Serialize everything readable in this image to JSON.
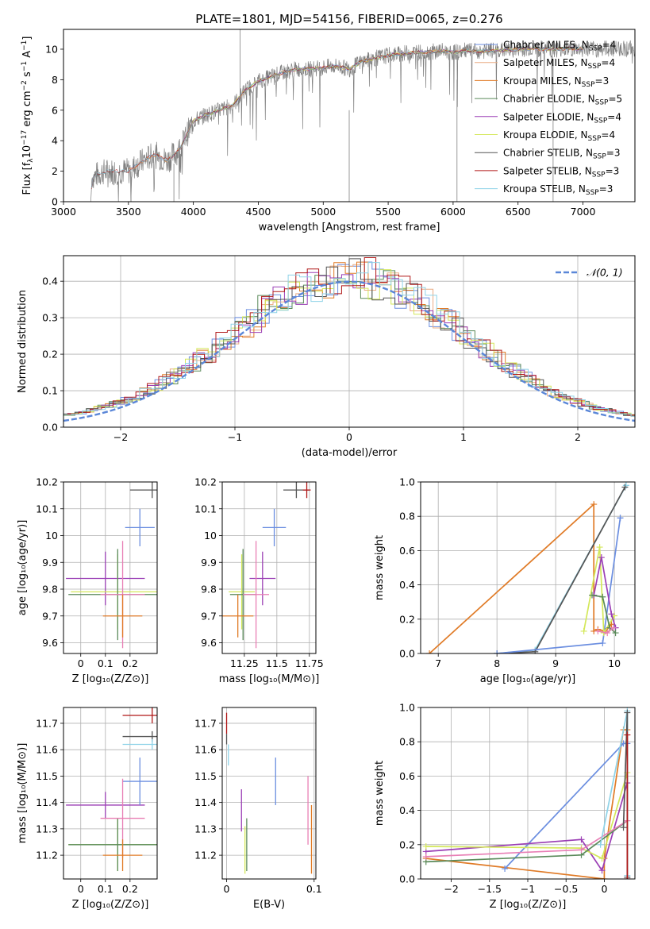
{
  "figure": {
    "title": "PLATE=1801, MJD=54156, FIBERID=0065, z=0.276"
  },
  "colors": {
    "chabrier_miles": "#6b8ee0",
    "salpeter_miles": "#e9ac84",
    "kroupa_miles": "#e07b27",
    "chabrier_elodie": "#5a8a5a",
    "salpeter_elodie": "#9b3fb5",
    "kroupa_elodie": "#d4e85a",
    "chabrier_stelib": "#555555",
    "salpeter_stelib": "#b01818",
    "kroupa_stelib": "#8fd3e8",
    "normal_curve": "#5b87d8",
    "pink": "#e87fb5",
    "grid": "#b0b0b0",
    "spectrum": "#808080"
  },
  "chart_data": [
    {
      "id": "spectrum",
      "type": "line",
      "xlabel": "wavelength [Angstrom, rest frame]",
      "ylabel_parts": [
        "Flux [f",
        "λ",
        "10",
        "−17",
        " erg cm",
        "−2",
        " s",
        "−1",
        " A",
        "−1",
        "]"
      ],
      "xlim": [
        3000,
        7400
      ],
      "ylim": [
        0,
        11.3
      ],
      "xticks": [
        3000,
        3500,
        4000,
        4500,
        5000,
        5500,
        6000,
        6500,
        7000
      ],
      "yticks": [
        0,
        2,
        4,
        6,
        8,
        10
      ],
      "grid": false,
      "legend_position": "top-right",
      "legend": [
        {
          "label": "Chabrier MILES, N",
          "sub": "SSP",
          "tail": "=4",
          "color": "#6b8ee0"
        },
        {
          "label": "Salpeter MILES, N",
          "sub": "SSP",
          "tail": "=4",
          "color": "#e9ac84"
        },
        {
          "label": "Kroupa MILES, N",
          "sub": "SSP",
          "tail": "=3",
          "color": "#e07b27"
        },
        {
          "label": "Chabrier ELODIE, N",
          "sub": "SSP",
          "tail": "=5",
          "color": "#5a8a5a"
        },
        {
          "label": "Salpeter ELODIE, N",
          "sub": "SSP",
          "tail": "=4",
          "color": "#9b3fb5"
        },
        {
          "label": "Kroupa ELODIE, N",
          "sub": "SSP",
          "tail": "=4",
          "color": "#d4e85a"
        },
        {
          "label": "Chabrier STELIB, N",
          "sub": "SSP",
          "tail": "=3",
          "color": "#555555"
        },
        {
          "label": "Salpeter STELIB, N",
          "sub": "SSP",
          "tail": "=3",
          "color": "#b01818"
        },
        {
          "label": "Kroupa STELIB, N",
          "sub": "SSP",
          "tail": "=3",
          "color": "#8fd3e8"
        }
      ],
      "continuum_points": [
        [
          3210,
          0
        ],
        [
          3220,
          1.6
        ],
        [
          3300,
          1.95
        ],
        [
          3400,
          2.0
        ],
        [
          3500,
          2.0
        ],
        [
          3600,
          2.6
        ],
        [
          3700,
          3.1
        ],
        [
          3800,
          2.7
        ],
        [
          3900,
          3.5
        ],
        [
          4000,
          5.3
        ],
        [
          4100,
          5.7
        ],
        [
          4200,
          6.0
        ],
        [
          4300,
          6.3
        ],
        [
          4400,
          7.3
        ],
        [
          4500,
          7.9
        ],
        [
          4600,
          8.2
        ],
        [
          4700,
          8.5
        ],
        [
          4800,
          8.7
        ],
        [
          4900,
          8.7
        ],
        [
          5000,
          8.8
        ],
        [
          5100,
          8.9
        ],
        [
          5200,
          8.7
        ],
        [
          5300,
          9.2
        ],
        [
          5400,
          9.4
        ],
        [
          5500,
          9.6
        ],
        [
          5600,
          9.7
        ],
        [
          5700,
          9.8
        ],
        [
          5800,
          9.8
        ],
        [
          5900,
          9.9
        ],
        [
          6000,
          9.8
        ],
        [
          6100,
          9.9
        ],
        [
          6200,
          9.85
        ],
        [
          6300,
          9.9
        ],
        [
          6400,
          9.95
        ],
        [
          6500,
          10.0
        ],
        [
          6600,
          10.05
        ],
        [
          6700,
          10.0
        ],
        [
          6800,
          10.0
        ],
        [
          6900,
          10.05
        ],
        [
          7000,
          10.0
        ],
        [
          7100,
          10.0
        ],
        [
          7200,
          10.05
        ],
        [
          7400,
          10.05
        ]
      ]
    },
    {
      "id": "residuals",
      "type": "histogram",
      "xlabel": "(data-model)/error",
      "ylabel": "Normed distribution",
      "xlim": [
        -2.5,
        2.5
      ],
      "ylim": [
        0,
        0.47
      ],
      "xticks": [
        -2,
        -1,
        0,
        1,
        2
      ],
      "yticks": [
        0.0,
        0.1,
        0.2,
        0.3,
        0.4
      ],
      "grid": true,
      "legend_position": "top-right",
      "legend": [
        {
          "label": "𝒩(0, 1)",
          "color": "#5b87d8"
        }
      ],
      "bin_width": 0.1
    },
    {
      "id": "age_vs_Z",
      "type": "errorbar",
      "xlabel": "Z [log₁₀(Z/Z⊙)]",
      "ylabel": "age  [log₁₀(age/yr)]",
      "xlim": [
        -0.07,
        0.31
      ],
      "ylim": [
        9.56,
        10.2
      ],
      "xticks": [
        0.0,
        0.1,
        0.2
      ],
      "yticks": [
        9.6,
        9.7,
        9.8,
        9.9,
        10.0,
        10.1,
        10.2
      ],
      "grid": true,
      "points": [
        {
          "x": 0.1,
          "xerr": 0.16,
          "y": 9.84,
          "yerr": 0.1,
          "color": "#9b3fb5"
        },
        {
          "x": 0.24,
          "xerr": 0.06,
          "y": 10.03,
          "yerr": 0.07,
          "color": "#6b8ee0"
        },
        {
          "x": 0.29,
          "xerr": 0.09,
          "y": 10.17,
          "yerr": 0.03,
          "color": "#555555"
        },
        {
          "x": 0.15,
          "xerr": 0.19,
          "y": 9.79,
          "yerr": 0.14,
          "color": "#d4e85a"
        },
        {
          "x": 0.15,
          "xerr": 0.2,
          "y": 9.78,
          "yerr": 0.17,
          "color": "#5a8a5a"
        },
        {
          "x": 0.17,
          "xerr": 0.09,
          "y": 9.78,
          "yerr": 0.2,
          "color": "#e87fb5"
        },
        {
          "x": 0.17,
          "xerr": 0.08,
          "y": 9.7,
          "yerr": 0.08,
          "color": "#e07b27"
        }
      ]
    },
    {
      "id": "age_vs_mass",
      "type": "errorbar",
      "xlabel": "mass [log₁₀(M/M⊙)]",
      "xlim": [
        11.08,
        11.8
      ],
      "ylim": [
        9.56,
        10.2
      ],
      "xticks": [
        11.25,
        11.5,
        11.75
      ],
      "yticks": [
        9.6,
        9.7,
        9.8,
        9.9,
        10.0,
        10.1,
        10.2
      ],
      "grid": true,
      "points": [
        {
          "x": 11.39,
          "xerr": 0.1,
          "y": 9.84,
          "yerr": 0.1,
          "color": "#9b3fb5"
        },
        {
          "x": 11.48,
          "xerr": 0.09,
          "y": 10.03,
          "yerr": 0.07,
          "color": "#6b8ee0"
        },
        {
          "x": 11.65,
          "xerr": 0.1,
          "y": 10.17,
          "yerr": 0.03,
          "color": "#555555"
        },
        {
          "x": 11.73,
          "xerr": 0.03,
          "y": 10.17,
          "yerr": 0.03,
          "color": "#b01818"
        },
        {
          "x": 11.23,
          "xerr": 0.1,
          "y": 9.79,
          "yerr": 0.14,
          "color": "#d4e85a"
        },
        {
          "x": 11.24,
          "xerr": 0.1,
          "y": 9.78,
          "yerr": 0.17,
          "color": "#5a8a5a"
        },
        {
          "x": 11.34,
          "xerr": 0.1,
          "y": 9.78,
          "yerr": 0.2,
          "color": "#e87fb5"
        },
        {
          "x": 11.2,
          "xerr": 0.12,
          "y": 9.7,
          "yerr": 0.08,
          "color": "#e07b27"
        }
      ]
    },
    {
      "id": "weight_vs_age",
      "type": "line",
      "xlabel": "age  [log₁₀(age/yr)]",
      "ylabel": "mass weight",
      "xlim": [
        6.7,
        10.35
      ],
      "ylim": [
        0,
        1.0
      ],
      "xticks": [
        7,
        8,
        9,
        10
      ],
      "yticks": [
        0.0,
        0.2,
        0.4,
        0.6,
        0.8,
        1.0
      ],
      "grid": true,
      "series": [
        {
          "color": "#e07b27",
          "x": [
            6.85,
            9.65,
            9.65,
            9.72,
            9.85,
            9.95
          ],
          "y": [
            0.0,
            0.87,
            0.13,
            0.14,
            0.13,
            0.17
          ]
        },
        {
          "color": "#8fd3e8",
          "x": [
            8.0,
            8.65,
            10.2,
            10.2
          ],
          "y": [
            0.0,
            0.02,
            0.98,
            0.98
          ]
        },
        {
          "color": "#555555",
          "x": [
            8.0,
            8.65,
            10.18
          ],
          "y": [
            0.0,
            0.01,
            0.97
          ]
        },
        {
          "color": "#6b8ee0",
          "x": [
            8.0,
            9.8,
            10.1,
            10.1
          ],
          "y": [
            0.0,
            0.06,
            0.79,
            0.79
          ]
        },
        {
          "color": "#d4e85a",
          "x": [
            9.48,
            9.75,
            9.82,
            10.0
          ],
          "y": [
            0.13,
            0.62,
            0.12,
            0.22
          ]
        },
        {
          "color": "#9b3fb5",
          "x": [
            9.65,
            9.78,
            9.95,
            10.02
          ],
          "y": [
            0.34,
            0.56,
            0.23,
            0.15
          ]
        },
        {
          "color": "#5a8a5a",
          "x": [
            9.62,
            9.8,
            9.92,
            10.02
          ],
          "y": [
            0.34,
            0.33,
            0.15,
            0.12
          ]
        },
        {
          "color": "#e87fb5",
          "x": [
            9.72,
            9.88,
            9.98
          ],
          "y": [
            0.13,
            0.12,
            0.15
          ]
        }
      ]
    },
    {
      "id": "mass_vs_Z",
      "type": "errorbar",
      "xlabel": "Z [log₁₀(Z/Z⊙)]",
      "ylabel": "mass [log₁₀(M/M⊙)]",
      "xlim": [
        -0.07,
        0.31
      ],
      "ylim": [
        11.11,
        11.76
      ],
      "xticks": [
        0.0,
        0.1,
        0.2
      ],
      "yticks": [
        11.2,
        11.3,
        11.4,
        11.5,
        11.6,
        11.7
      ],
      "grid": true,
      "points": [
        {
          "x": 0.1,
          "xerr": 0.16,
          "y": 11.39,
          "yerr": 0.05,
          "color": "#9b3fb5"
        },
        {
          "x": 0.24,
          "xerr": 0.07,
          "y": 11.48,
          "yerr": 0.09,
          "color": "#6b8ee0"
        },
        {
          "x": 0.29,
          "xerr": 0.12,
          "y": 11.73,
          "yerr": 0.03,
          "color": "#b01818"
        },
        {
          "x": 0.29,
          "xerr": 0.12,
          "y": 11.65,
          "yerr": 0.02,
          "color": "#555555"
        },
        {
          "x": 0.29,
          "xerr": 0.12,
          "y": 11.62,
          "yerr": 0.02,
          "color": "#8fd3e8"
        },
        {
          "x": 0.15,
          "xerr": 0.2,
          "y": 11.24,
          "yerr": 0.1,
          "color": "#d4e85a"
        },
        {
          "x": 0.15,
          "xerr": 0.2,
          "y": 11.24,
          "yerr": 0.1,
          "color": "#5a8a5a"
        },
        {
          "x": 0.17,
          "xerr": 0.09,
          "y": 11.34,
          "yerr": 0.15,
          "color": "#e87fb5"
        },
        {
          "x": 0.17,
          "xerr": 0.08,
          "y": 11.2,
          "yerr": 0.06,
          "color": "#e07b27"
        }
      ]
    },
    {
      "id": "mass_vs_ebv",
      "type": "errorbar",
      "xlabel": "E(B-V)",
      "xlim": [
        -0.005,
        0.102
      ],
      "ylim": [
        11.11,
        11.76
      ],
      "xticks": [
        0.0,
        0.1
      ],
      "yticks": [
        11.2,
        11.3,
        11.4,
        11.5,
        11.6,
        11.7
      ],
      "grid": true,
      "points": [
        {
          "x": 0.0,
          "xerr": 0,
          "y": 11.7,
          "yerr": 0.04,
          "color": "#b01818"
        },
        {
          "x": 0.0,
          "xerr": 0,
          "y": 11.64,
          "yerr": 0.02,
          "color": "#555555"
        },
        {
          "x": 0.002,
          "xerr": 0,
          "y": 11.58,
          "yerr": 0.04,
          "color": "#8fd3e8"
        },
        {
          "x": 0.017,
          "xerr": 0,
          "y": 11.37,
          "yerr": 0.08,
          "color": "#9b3fb5"
        },
        {
          "x": 0.021,
          "xerr": 0,
          "y": 11.22,
          "yerr": 0.09,
          "color": "#d4e85a"
        },
        {
          "x": 0.023,
          "xerr": 0,
          "y": 11.24,
          "yerr": 0.1,
          "color": "#5a8a5a"
        },
        {
          "x": 0.056,
          "xerr": 0,
          "y": 11.48,
          "yerr": 0.09,
          "color": "#6b8ee0"
        },
        {
          "x": 0.093,
          "xerr": 0,
          "y": 11.37,
          "yerr": 0.13,
          "color": "#e87fb5"
        },
        {
          "x": 0.097,
          "xerr": 0,
          "y": 11.26,
          "yerr": 0.13,
          "color": "#e07b27"
        }
      ]
    },
    {
      "id": "weight_vs_Z",
      "type": "line",
      "xlabel": "Z [log₁₀(Z/Z⊙)]",
      "ylabel": "mass weight",
      "xlim": [
        -2.4,
        0.4
      ],
      "ylim": [
        0,
        1.0
      ],
      "xticks": [
        -2.0,
        -1.5,
        -1.0,
        -0.5,
        0.0
      ],
      "yticks": [
        0.0,
        0.2,
        0.4,
        0.6,
        0.8,
        1.0
      ],
      "grid": true,
      "series": [
        {
          "color": "#e07b27",
          "x": [
            -2.33,
            0.0,
            0.0,
            0.25,
            0.3
          ],
          "y": [
            0.12,
            0.0,
            0.12,
            0.87,
            0.87
          ]
        },
        {
          "color": "#6b8ee0",
          "x": [
            -1.3,
            0.25,
            0.3
          ],
          "y": [
            0.06,
            0.79,
            0.79
          ]
        },
        {
          "color": "#9b3fb5",
          "x": [
            -2.33,
            -0.3,
            -0.03,
            0.3
          ],
          "y": [
            0.16,
            0.23,
            0.05,
            0.56
          ]
        },
        {
          "color": "#d4e85a",
          "x": [
            -2.33,
            -0.3,
            -0.03,
            0.3
          ],
          "y": [
            0.19,
            0.18,
            0.12,
            0.62
          ]
        },
        {
          "color": "#5a8a5a",
          "x": [
            -2.33,
            -0.3,
            0.3
          ],
          "y": [
            0.1,
            0.14,
            0.34
          ]
        },
        {
          "color": "#e87fb5",
          "x": [
            -2.33,
            -0.3,
            0.3
          ],
          "y": [
            0.13,
            0.17,
            0.34
          ]
        },
        {
          "color": "#8fd3e8",
          "x": [
            -0.05,
            0.3,
            0.3
          ],
          "y": [
            0.2,
            0.98,
            0.02
          ]
        },
        {
          "color": "#555555",
          "x": [
            0.25,
            0.3,
            0.3
          ],
          "y": [
            0.3,
            0.97,
            0.01
          ]
        },
        {
          "color": "#b01818",
          "x": [
            0.3,
            0.3
          ],
          "y": [
            0.0,
            0.84
          ]
        }
      ]
    }
  ]
}
